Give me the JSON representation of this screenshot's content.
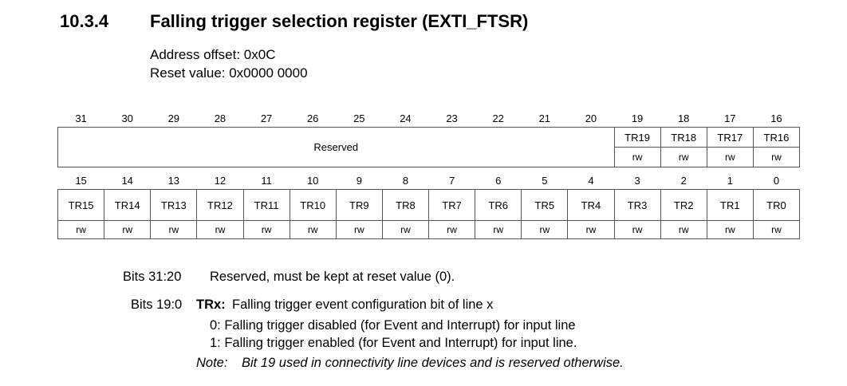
{
  "section": {
    "number": "10.3.4",
    "title": "Falling trigger selection register (EXTI_FTSR)",
    "address_offset": "Address offset: 0x0C",
    "reset_value": "Reset value: 0x0000 0000"
  },
  "register": {
    "high_bit_numbers": [
      "31",
      "30",
      "29",
      "28",
      "27",
      "26",
      "25",
      "24",
      "23",
      "22",
      "21",
      "20",
      "19",
      "18",
      "17",
      "16"
    ],
    "reserved_label": "Reserved",
    "high_fields": [
      "TR19",
      "TR18",
      "TR17",
      "TR16"
    ],
    "high_access": [
      "rw",
      "rw",
      "rw",
      "rw"
    ],
    "low_bit_numbers": [
      "15",
      "14",
      "13",
      "12",
      "11",
      "10",
      "9",
      "8",
      "7",
      "6",
      "5",
      "4",
      "3",
      "2",
      "1",
      "0"
    ],
    "low_fields": [
      "TR15",
      "TR14",
      "TR13",
      "TR12",
      "TR11",
      "TR10",
      "TR9",
      "TR8",
      "TR7",
      "TR6",
      "TR5",
      "TR4",
      "TR3",
      "TR2",
      "TR1",
      "TR0"
    ],
    "low_access": [
      "rw",
      "rw",
      "rw",
      "rw",
      "rw",
      "rw",
      "rw",
      "rw",
      "rw",
      "rw",
      "rw",
      "rw",
      "rw",
      "rw",
      "rw",
      "rw"
    ]
  },
  "descriptions": {
    "bits_31_20": {
      "label": "Bits 31:20",
      "text": "Reserved, must be kept at reset value (0)."
    },
    "bits_19_0": {
      "label": "Bits 19:0",
      "name": "TRx:",
      "text": "Falling trigger event configuration bit of line x",
      "option0": "0: Falling trigger disabled (for Event and Interrupt) for input line",
      "option1": "1: Falling trigger enabled (for Event and Interrupt) for input line."
    },
    "note": {
      "label": "Note:",
      "text": "Bit 19 used in connectivity line devices and is reserved otherwise."
    }
  }
}
